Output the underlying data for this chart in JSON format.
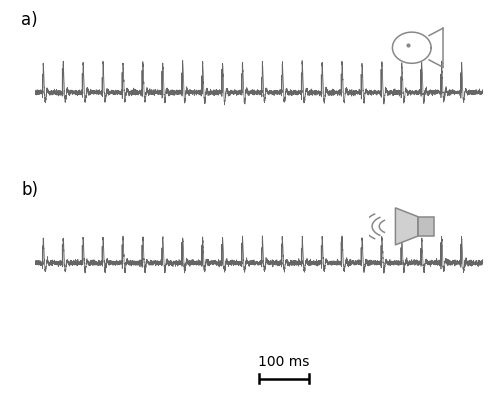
{
  "fig_width": 4.98,
  "fig_height": 4.06,
  "dpi": 100,
  "bg_color": "#ffffff",
  "waveform_color": "#666666",
  "waveform_linewidth": 0.55,
  "icon_color": "#888888",
  "label_a": "a)",
  "label_b": "b)",
  "label_fontsize": 12,
  "scalebar_text": "100 ms",
  "scalebar_fontsize": 10,
  "n_pulses": 22,
  "total_time": 900,
  "pulse_period": 40,
  "sample_rate": 8000,
  "noise_amp": 0.03,
  "pulse_amp_a": 1.0,
  "pulse_amp_b": 0.85,
  "scalebar_ms": 100,
  "ylim": 1.8
}
